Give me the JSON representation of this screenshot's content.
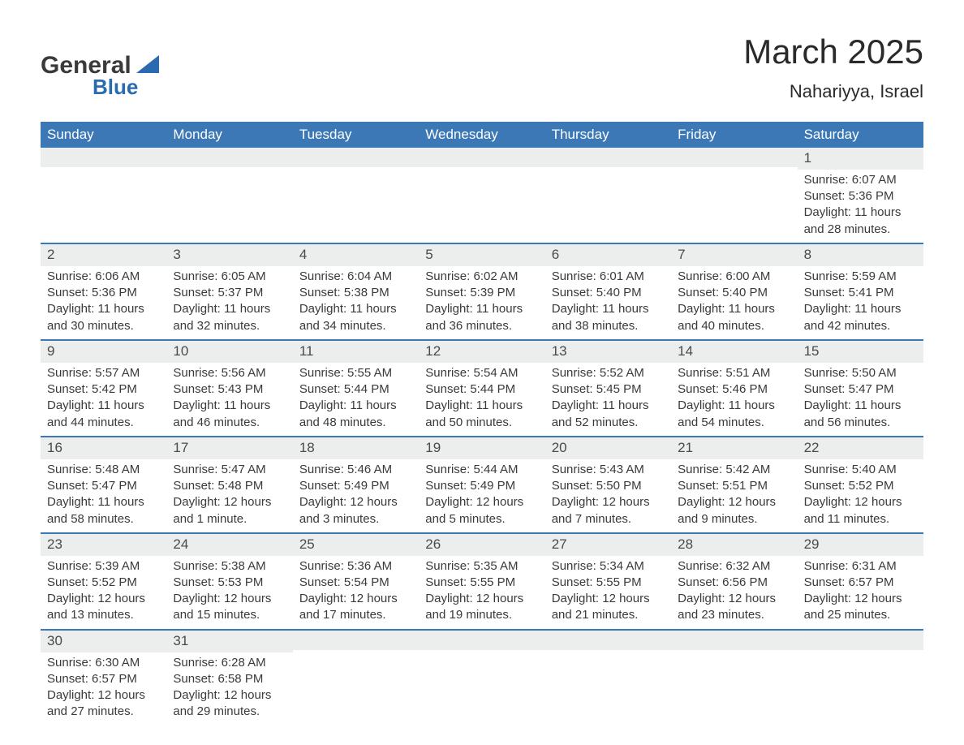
{
  "brand": {
    "word1": "General",
    "word2": "Blue"
  },
  "title": "March 2025",
  "location": "Nahariyya, Israel",
  "colors": {
    "header_bg": "#3b78b5",
    "header_text": "#ffffff",
    "stripe_bg": "#eceded",
    "divider": "#3b78b5",
    "text": "#3a3a3a",
    "accent": "#2a6bb0"
  },
  "day_names": [
    "Sunday",
    "Monday",
    "Tuesday",
    "Wednesday",
    "Thursday",
    "Friday",
    "Saturday"
  ],
  "weeks": [
    [
      {
        "empty": true
      },
      {
        "empty": true
      },
      {
        "empty": true
      },
      {
        "empty": true
      },
      {
        "empty": true
      },
      {
        "empty": true
      },
      {
        "n": "1",
        "sunrise": "Sunrise: 6:07 AM",
        "sunset": "Sunset: 5:36 PM",
        "dl1": "Daylight: 11 hours",
        "dl2": "and 28 minutes."
      }
    ],
    [
      {
        "n": "2",
        "sunrise": "Sunrise: 6:06 AM",
        "sunset": "Sunset: 5:36 PM",
        "dl1": "Daylight: 11 hours",
        "dl2": "and 30 minutes."
      },
      {
        "n": "3",
        "sunrise": "Sunrise: 6:05 AM",
        "sunset": "Sunset: 5:37 PM",
        "dl1": "Daylight: 11 hours",
        "dl2": "and 32 minutes."
      },
      {
        "n": "4",
        "sunrise": "Sunrise: 6:04 AM",
        "sunset": "Sunset: 5:38 PM",
        "dl1": "Daylight: 11 hours",
        "dl2": "and 34 minutes."
      },
      {
        "n": "5",
        "sunrise": "Sunrise: 6:02 AM",
        "sunset": "Sunset: 5:39 PM",
        "dl1": "Daylight: 11 hours",
        "dl2": "and 36 minutes."
      },
      {
        "n": "6",
        "sunrise": "Sunrise: 6:01 AM",
        "sunset": "Sunset: 5:40 PM",
        "dl1": "Daylight: 11 hours",
        "dl2": "and 38 minutes."
      },
      {
        "n": "7",
        "sunrise": "Sunrise: 6:00 AM",
        "sunset": "Sunset: 5:40 PM",
        "dl1": "Daylight: 11 hours",
        "dl2": "and 40 minutes."
      },
      {
        "n": "8",
        "sunrise": "Sunrise: 5:59 AM",
        "sunset": "Sunset: 5:41 PM",
        "dl1": "Daylight: 11 hours",
        "dl2": "and 42 minutes."
      }
    ],
    [
      {
        "n": "9",
        "sunrise": "Sunrise: 5:57 AM",
        "sunset": "Sunset: 5:42 PM",
        "dl1": "Daylight: 11 hours",
        "dl2": "and 44 minutes."
      },
      {
        "n": "10",
        "sunrise": "Sunrise: 5:56 AM",
        "sunset": "Sunset: 5:43 PM",
        "dl1": "Daylight: 11 hours",
        "dl2": "and 46 minutes."
      },
      {
        "n": "11",
        "sunrise": "Sunrise: 5:55 AM",
        "sunset": "Sunset: 5:44 PM",
        "dl1": "Daylight: 11 hours",
        "dl2": "and 48 minutes."
      },
      {
        "n": "12",
        "sunrise": "Sunrise: 5:54 AM",
        "sunset": "Sunset: 5:44 PM",
        "dl1": "Daylight: 11 hours",
        "dl2": "and 50 minutes."
      },
      {
        "n": "13",
        "sunrise": "Sunrise: 5:52 AM",
        "sunset": "Sunset: 5:45 PM",
        "dl1": "Daylight: 11 hours",
        "dl2": "and 52 minutes."
      },
      {
        "n": "14",
        "sunrise": "Sunrise: 5:51 AM",
        "sunset": "Sunset: 5:46 PM",
        "dl1": "Daylight: 11 hours",
        "dl2": "and 54 minutes."
      },
      {
        "n": "15",
        "sunrise": "Sunrise: 5:50 AM",
        "sunset": "Sunset: 5:47 PM",
        "dl1": "Daylight: 11 hours",
        "dl2": "and 56 minutes."
      }
    ],
    [
      {
        "n": "16",
        "sunrise": "Sunrise: 5:48 AM",
        "sunset": "Sunset: 5:47 PM",
        "dl1": "Daylight: 11 hours",
        "dl2": "and 58 minutes."
      },
      {
        "n": "17",
        "sunrise": "Sunrise: 5:47 AM",
        "sunset": "Sunset: 5:48 PM",
        "dl1": "Daylight: 12 hours",
        "dl2": "and 1 minute."
      },
      {
        "n": "18",
        "sunrise": "Sunrise: 5:46 AM",
        "sunset": "Sunset: 5:49 PM",
        "dl1": "Daylight: 12 hours",
        "dl2": "and 3 minutes."
      },
      {
        "n": "19",
        "sunrise": "Sunrise: 5:44 AM",
        "sunset": "Sunset: 5:49 PM",
        "dl1": "Daylight: 12 hours",
        "dl2": "and 5 minutes."
      },
      {
        "n": "20",
        "sunrise": "Sunrise: 5:43 AM",
        "sunset": "Sunset: 5:50 PM",
        "dl1": "Daylight: 12 hours",
        "dl2": "and 7 minutes."
      },
      {
        "n": "21",
        "sunrise": "Sunrise: 5:42 AM",
        "sunset": "Sunset: 5:51 PM",
        "dl1": "Daylight: 12 hours",
        "dl2": "and 9 minutes."
      },
      {
        "n": "22",
        "sunrise": "Sunrise: 5:40 AM",
        "sunset": "Sunset: 5:52 PM",
        "dl1": "Daylight: 12 hours",
        "dl2": "and 11 minutes."
      }
    ],
    [
      {
        "n": "23",
        "sunrise": "Sunrise: 5:39 AM",
        "sunset": "Sunset: 5:52 PM",
        "dl1": "Daylight: 12 hours",
        "dl2": "and 13 minutes."
      },
      {
        "n": "24",
        "sunrise": "Sunrise: 5:38 AM",
        "sunset": "Sunset: 5:53 PM",
        "dl1": "Daylight: 12 hours",
        "dl2": "and 15 minutes."
      },
      {
        "n": "25",
        "sunrise": "Sunrise: 5:36 AM",
        "sunset": "Sunset: 5:54 PM",
        "dl1": "Daylight: 12 hours",
        "dl2": "and 17 minutes."
      },
      {
        "n": "26",
        "sunrise": "Sunrise: 5:35 AM",
        "sunset": "Sunset: 5:55 PM",
        "dl1": "Daylight: 12 hours",
        "dl2": "and 19 minutes."
      },
      {
        "n": "27",
        "sunrise": "Sunrise: 5:34 AM",
        "sunset": "Sunset: 5:55 PM",
        "dl1": "Daylight: 12 hours",
        "dl2": "and 21 minutes."
      },
      {
        "n": "28",
        "sunrise": "Sunrise: 6:32 AM",
        "sunset": "Sunset: 6:56 PM",
        "dl1": "Daylight: 12 hours",
        "dl2": "and 23 minutes."
      },
      {
        "n": "29",
        "sunrise": "Sunrise: 6:31 AM",
        "sunset": "Sunset: 6:57 PM",
        "dl1": "Daylight: 12 hours",
        "dl2": "and 25 minutes."
      }
    ],
    [
      {
        "n": "30",
        "sunrise": "Sunrise: 6:30 AM",
        "sunset": "Sunset: 6:57 PM",
        "dl1": "Daylight: 12 hours",
        "dl2": "and 27 minutes."
      },
      {
        "n": "31",
        "sunrise": "Sunrise: 6:28 AM",
        "sunset": "Sunset: 6:58 PM",
        "dl1": "Daylight: 12 hours",
        "dl2": "and 29 minutes."
      },
      {
        "empty": true
      },
      {
        "empty": true
      },
      {
        "empty": true
      },
      {
        "empty": true
      },
      {
        "empty": true
      }
    ]
  ]
}
